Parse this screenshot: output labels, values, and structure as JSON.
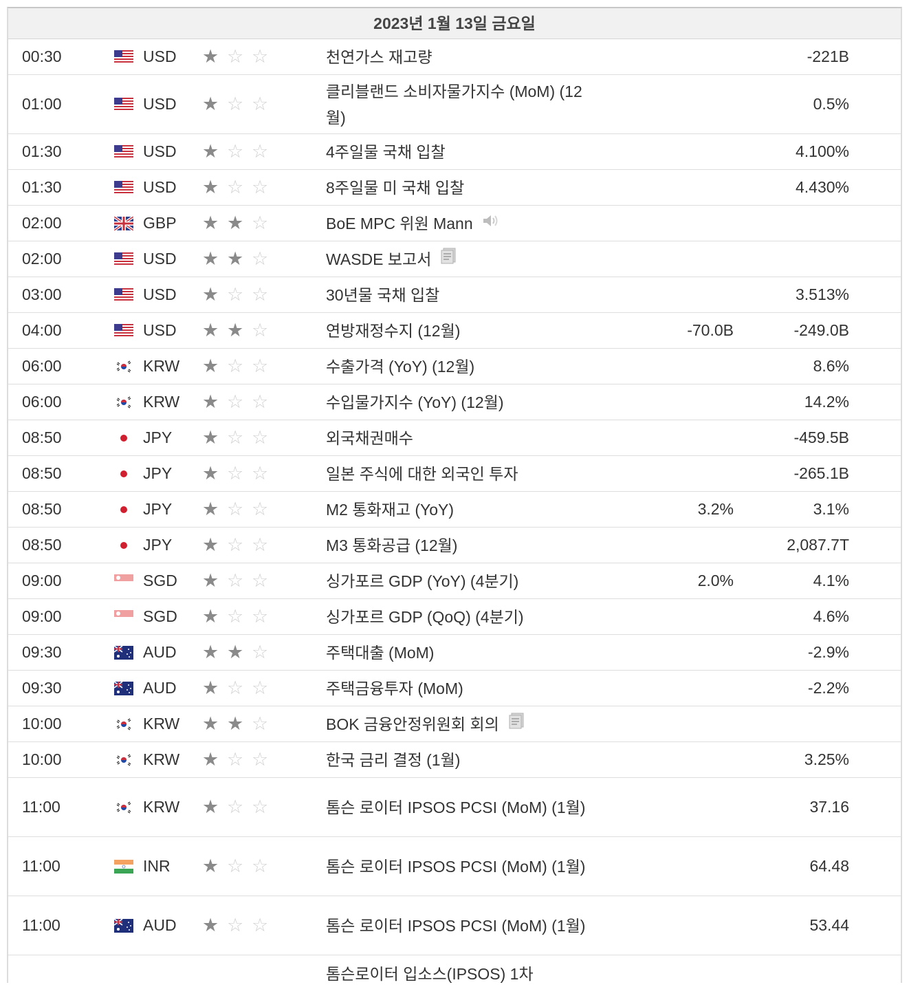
{
  "date_header": "2023년 1월 13일 금요일",
  "events": [
    {
      "time": "00:30",
      "flag": "us-flag-icon",
      "currency": "USD",
      "importance": 1,
      "event": "천연가스 재고량",
      "forecast": "",
      "previous": "-221B",
      "icon": ""
    },
    {
      "time": "01:00",
      "flag": "us-flag-icon",
      "currency": "USD",
      "importance": 1,
      "event": "클리블랜드 소비자물가지수 (MoM) (12월)",
      "forecast": "",
      "previous": "0.5%",
      "icon": ""
    },
    {
      "time": "01:30",
      "flag": "us-flag-icon",
      "currency": "USD",
      "importance": 1,
      "event": "4주일물 국채 입찰",
      "forecast": "",
      "previous": "4.100%",
      "icon": ""
    },
    {
      "time": "01:30",
      "flag": "us-flag-icon",
      "currency": "USD",
      "importance": 1,
      "event": "8주일물 미 국채 입찰",
      "forecast": "",
      "previous": "4.430%",
      "icon": ""
    },
    {
      "time": "02:00",
      "flag": "uk-flag-icon",
      "currency": "GBP",
      "importance": 2,
      "event": "BoE MPC 위원 Mann",
      "forecast": "",
      "previous": "",
      "icon": "speaker-icon"
    },
    {
      "time": "02:00",
      "flag": "us-flag-icon",
      "currency": "USD",
      "importance": 2,
      "event": "WASDE 보고서",
      "forecast": "",
      "previous": "",
      "icon": "report-icon"
    },
    {
      "time": "03:00",
      "flag": "us-flag-icon",
      "currency": "USD",
      "importance": 1,
      "event": "30년물 국채 입찰",
      "forecast": "",
      "previous": "3.513%",
      "icon": ""
    },
    {
      "time": "04:00",
      "flag": "us-flag-icon",
      "currency": "USD",
      "importance": 2,
      "event": "연방재정수지 (12월)",
      "forecast": "-70.0B",
      "previous": "-249.0B",
      "icon": ""
    },
    {
      "time": "06:00",
      "flag": "kr-flag-icon",
      "currency": "KRW",
      "importance": 1,
      "event": "수출가격 (YoY) (12월)",
      "forecast": "",
      "previous": "8.6%",
      "icon": ""
    },
    {
      "time": "06:00",
      "flag": "kr-flag-icon",
      "currency": "KRW",
      "importance": 1,
      "event": "수입물가지수 (YoY) (12월)",
      "forecast": "",
      "previous": "14.2%",
      "icon": ""
    },
    {
      "time": "08:50",
      "flag": "jp-flag-icon",
      "currency": "JPY",
      "importance": 1,
      "event": "외국채권매수",
      "forecast": "",
      "previous": "-459.5B",
      "icon": ""
    },
    {
      "time": "08:50",
      "flag": "jp-flag-icon",
      "currency": "JPY",
      "importance": 1,
      "event": "일본 주식에 대한 외국인 투자",
      "forecast": "",
      "previous": "-265.1B",
      "icon": ""
    },
    {
      "time": "08:50",
      "flag": "jp-flag-icon",
      "currency": "JPY",
      "importance": 1,
      "event": "M2 통화재고 (YoY)",
      "forecast": "3.2%",
      "previous": "3.1%",
      "icon": ""
    },
    {
      "time": "08:50",
      "flag": "jp-flag-icon",
      "currency": "JPY",
      "importance": 1,
      "event": "M3 통화공급 (12월)",
      "forecast": "",
      "previous": "2,087.7T",
      "icon": ""
    },
    {
      "time": "09:00",
      "flag": "sg-flag-icon",
      "currency": "SGD",
      "importance": 1,
      "event": "싱가포르 GDP (YoY) (4분기)",
      "forecast": "2.0%",
      "previous": "4.1%",
      "icon": ""
    },
    {
      "time": "09:00",
      "flag": "sg-flag-icon",
      "currency": "SGD",
      "importance": 1,
      "event": "싱가포르 GDP (QoQ) (4분기)",
      "forecast": "",
      "previous": "4.6%",
      "icon": ""
    },
    {
      "time": "09:30",
      "flag": "au-flag-icon",
      "currency": "AUD",
      "importance": 2,
      "event": "주택대출 (MoM)",
      "forecast": "",
      "previous": "-2.9%",
      "icon": ""
    },
    {
      "time": "09:30",
      "flag": "au-flag-icon",
      "currency": "AUD",
      "importance": 1,
      "event": "주택금융투자 (MoM)",
      "forecast": "",
      "previous": "-2.2%",
      "icon": ""
    },
    {
      "time": "10:00",
      "flag": "kr-flag-icon",
      "currency": "KRW",
      "importance": 2,
      "event": "BOK 금융안정위원회 회의",
      "forecast": "",
      "previous": "",
      "icon": "report-icon"
    },
    {
      "time": "10:00",
      "flag": "kr-flag-icon",
      "currency": "KRW",
      "importance": 1,
      "event": "한국 금리 결정 (1월)",
      "forecast": "",
      "previous": "3.25%",
      "icon": ""
    },
    {
      "time": "11:00",
      "flag": "kr-flag-icon",
      "currency": "KRW",
      "importance": 1,
      "event": "톰슨 로이터 IPSOS PCSI (MoM) (1월)",
      "forecast": "",
      "previous": "37.16",
      "icon": ""
    },
    {
      "time": "11:00",
      "flag": "in-flag-icon",
      "currency": "INR",
      "importance": 1,
      "event": "톰슨 로이터 IPSOS PCSI (MoM) (1월)",
      "forecast": "",
      "previous": "64.48",
      "icon": ""
    },
    {
      "time": "11:00",
      "flag": "au-flag-icon",
      "currency": "AUD",
      "importance": 1,
      "event": "톰슨 로이터 IPSOS PCSI (MoM) (1월)",
      "forecast": "",
      "previous": "53.44",
      "icon": ""
    },
    {
      "time": "",
      "flag": "",
      "currency": "",
      "importance": 0,
      "event": "톰슨로이터 입소스(IPSOS) 1차",
      "forecast": "",
      "previous": "",
      "icon": ""
    }
  ]
}
